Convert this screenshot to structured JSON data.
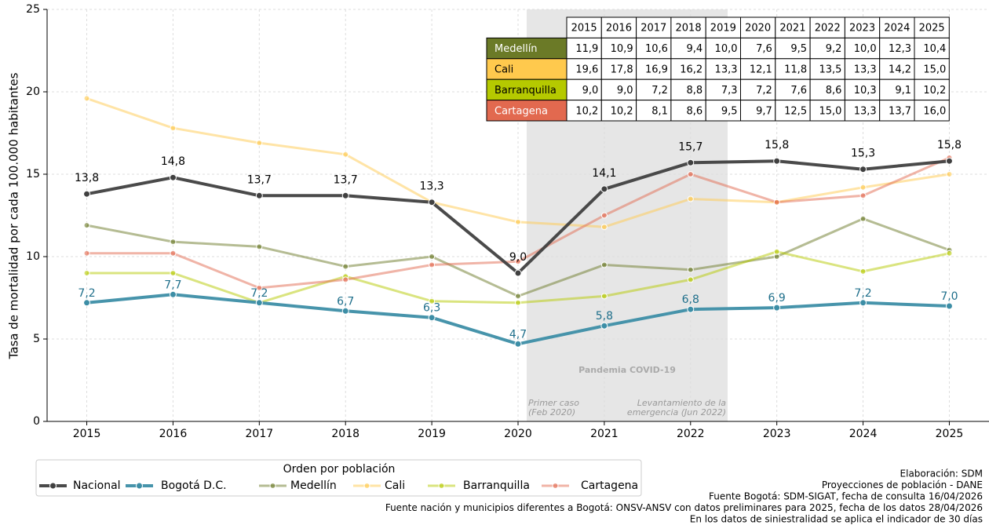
{
  "chart_data": {
    "type": "line",
    "ylabel": "Tasa de mortalidad por cada 100.000 habitantes",
    "x": [
      2015,
      2016,
      2017,
      2018,
      2019,
      2020,
      2021,
      2022,
      2023,
      2024,
      2025
    ],
    "xlim": [
      2014.54,
      2025.46
    ],
    "xticks": [
      2015,
      2016,
      2017,
      2018,
      2019,
      2020,
      2021,
      2022,
      2023,
      2024,
      2025
    ],
    "ylim": [
      0,
      25
    ],
    "yticks": [
      0,
      5,
      10,
      15,
      20,
      25
    ],
    "grid": true,
    "series": [
      {
        "name": "Nacional",
        "color": "#404040",
        "values": [
          13.8,
          14.8,
          13.7,
          13.7,
          13.3,
          9.0,
          14.1,
          15.7,
          15.8,
          15.3,
          15.8
        ],
        "value_labels": [
          "13,8",
          "14,8",
          "13,7",
          "13,7",
          "13,3",
          "9,0",
          "14,1",
          "15,7",
          "15,8",
          "15,3",
          "15,8"
        ]
      },
      {
        "name": "Bogotá D.C.",
        "color": "#3d8ea6",
        "values": [
          7.2,
          7.7,
          7.2,
          6.7,
          6.3,
          4.7,
          5.8,
          6.8,
          6.9,
          7.2,
          7.0
        ],
        "value_labels": [
          "7,2",
          "7,7",
          "7,2",
          "6,7",
          "6,3",
          "4,7",
          "5,8",
          "6,8",
          "6,9",
          "7,2",
          "7,0"
        ]
      },
      {
        "name": "Medellín",
        "color": "#6b7a27",
        "values": [
          11.9,
          10.9,
          10.6,
          9.4,
          10.0,
          7.6,
          9.5,
          9.2,
          10.0,
          12.3,
          10.4
        ]
      },
      {
        "name": "Cali",
        "color": "#ffc94d",
        "values": [
          19.6,
          17.8,
          16.9,
          16.2,
          13.3,
          12.1,
          11.8,
          13.5,
          13.3,
          14.2,
          15.0
        ]
      },
      {
        "name": "Barranquilla",
        "color": "#b5c900",
        "values": [
          9.0,
          9.0,
          7.2,
          8.8,
          7.3,
          7.2,
          7.6,
          8.6,
          10.3,
          9.1,
          10.2
        ]
      },
      {
        "name": "Cartagena",
        "color": "#e2694f",
        "values": [
          10.2,
          10.2,
          8.1,
          8.6,
          9.5,
          9.7,
          12.5,
          15.0,
          13.3,
          13.7,
          16.0
        ]
      }
    ],
    "span": {
      "x": [
        2020.1,
        2022.43
      ],
      "label": "Pandemia COVID-19",
      "start_label": [
        "Primer caso",
        "(Feb 2020)"
      ],
      "end_label": [
        "Levantamiento de la",
        "emergencia (Jun 2022)"
      ]
    },
    "legend": {
      "title": "Orden por población",
      "position": "lower left outside"
    },
    "table": {
      "columns": [
        "2015",
        "2016",
        "2017",
        "2018",
        "2019",
        "2020",
        "2021",
        "2022",
        "2023",
        "2024",
        "2025"
      ],
      "rows": [
        {
          "label": "Medellín",
          "cells": [
            "11,9",
            "10,9",
            "10,6",
            "9,4",
            "10,0",
            "7,6",
            "9,5",
            "9,2",
            "10,0",
            "12,3",
            "10,4"
          ]
        },
        {
          "label": "Cali",
          "cells": [
            "19,6",
            "17,8",
            "16,9",
            "16,2",
            "13,3",
            "12,1",
            "11,8",
            "13,5",
            "13,3",
            "14,2",
            "15,0"
          ]
        },
        {
          "label": "Barranquilla",
          "cells": [
            "9,0",
            "9,0",
            "7,2",
            "8,8",
            "7,3",
            "7,2",
            "7,6",
            "8,6",
            "10,3",
            "9,1",
            "10,2"
          ]
        },
        {
          "label": "Cartagena",
          "cells": [
            "10,2",
            "10,2",
            "8,1",
            "8,6",
            "9,5",
            "9,7",
            "12,5",
            "15,0",
            "13,3",
            "13,7",
            "16,0"
          ]
        }
      ]
    },
    "footer": [
      "Elaboración: SDM",
      "Proyecciones de población - DANE",
      "Fuente Bogotá: SDM-SIGAT, fecha de consulta 16/04/2026",
      "Fuente nación y municipios diferentes a Bogotá: ONSV-ANSV con datos preliminares para 2025, fecha de los datos 28/04/2026",
      "En los datos de siniestralidad se aplica el indicador de 30 días"
    ]
  }
}
